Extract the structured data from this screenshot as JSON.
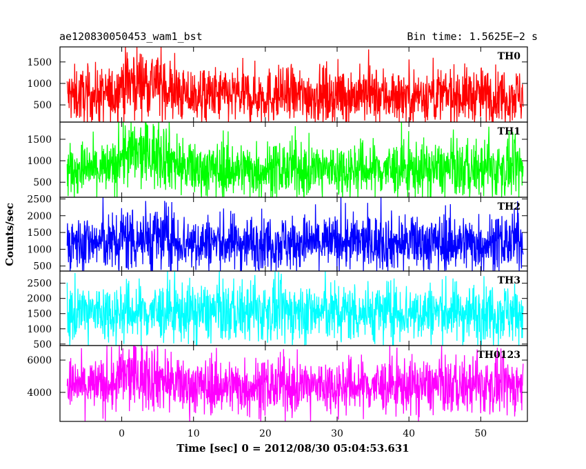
{
  "chart_data": {
    "type": "line",
    "title": "ae120830050453_wam1_bst",
    "subtitle": "Bin time: 1.5625E−2 s",
    "xlabel": "Time [sec] 0 = 2012/08/30 05:04:53.631",
    "ylabel": "Counts/sec",
    "xlim": [
      -8.6,
      56.5
    ],
    "x_ticks": [
      0,
      10,
      20,
      30,
      40,
      50
    ],
    "x_tick_labels": [
      "0",
      "10",
      "20",
      "30",
      "40",
      "50"
    ],
    "x_data_range": [
      -7.6,
      55.9
    ],
    "bin_time": 0.015625,
    "grid": false,
    "panels": [
      {
        "name": "TH0",
        "color": "#ff0000",
        "ylim": [
          100,
          1850
        ],
        "yticks": [
          500,
          1000,
          1500
        ],
        "ytick_labels": [
          "500",
          "1000",
          "1500"
        ],
        "baseline": 720,
        "upper_envelope": 1550,
        "lower_envelope": 200,
        "peak_max": 1850,
        "burst": {
          "start": 0,
          "end": 5,
          "mean": 1050
        }
      },
      {
        "name": "TH1",
        "color": "#00ff00",
        "ylim": [
          150,
          1900
        ],
        "yticks": [
          500,
          1000,
          1500
        ],
        "ytick_labels": [
          "500",
          "1000",
          "1500"
        ],
        "baseline": 800,
        "upper_envelope": 1600,
        "lower_envelope": 250,
        "peak_max": 1900,
        "burst": {
          "start": 0,
          "end": 6,
          "mean": 1150
        }
      },
      {
        "name": "TH2",
        "color": "#0000ff",
        "ylim": [
          350,
          2550
        ],
        "yticks": [
          500,
          1000,
          1500,
          2000,
          2500
        ],
        "ytick_labels": [
          "500",
          "1000",
          "1500",
          "2000",
          "2500"
        ],
        "baseline": 1200,
        "upper_envelope": 2200,
        "lower_envelope": 450,
        "peak_max": 2550,
        "burst": {
          "start": 0,
          "end": 6,
          "mean": 1350
        }
      },
      {
        "name": "TH3",
        "color": "#00ffff",
        "ylim": [
          450,
          2900
        ],
        "yticks": [
          500,
          1000,
          1500,
          2000,
          2500
        ],
        "ytick_labels": [
          "500",
          "1000",
          "1500",
          "2000",
          "2500"
        ],
        "baseline": 1550,
        "upper_envelope": 2650,
        "lower_envelope": 600,
        "peak_max": 2900,
        "burst": null
      },
      {
        "name": "TH0123",
        "color": "#ff00ff",
        "ylim": [
          2200,
          6900
        ],
        "yticks": [
          4000,
          6000
        ],
        "ytick_labels": [
          "4000",
          "6000"
        ],
        "baseline": 4400,
        "upper_envelope": 6100,
        "lower_envelope": 2500,
        "peak_max": 6900,
        "burst": {
          "start": 0,
          "end": 5,
          "mean": 5000
        }
      }
    ]
  }
}
